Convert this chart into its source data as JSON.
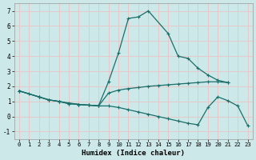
{
  "xlabel": "Humidex (Indice chaleur)",
  "xlim": [
    -0.5,
    23.5
  ],
  "ylim": [
    -1.5,
    7.5
  ],
  "xticks": [
    0,
    1,
    2,
    3,
    4,
    5,
    6,
    7,
    8,
    9,
    10,
    11,
    12,
    13,
    14,
    15,
    16,
    17,
    18,
    19,
    20,
    21,
    22,
    23
  ],
  "yticks": [
    -1,
    0,
    1,
    2,
    3,
    4,
    5,
    6,
    7
  ],
  "background_color": "#cce8e8",
  "grid_color": "#e8c8c8",
  "line_color": "#1a6e6a",
  "curve1_x": [
    0,
    1,
    2,
    3,
    4,
    5,
    6,
    7,
    8,
    9,
    10,
    11,
    12,
    13,
    15,
    16,
    17,
    18,
    19,
    20,
    21
  ],
  "curve1_y": [
    1.7,
    1.5,
    1.3,
    1.1,
    1.0,
    0.9,
    0.8,
    0.75,
    0.72,
    2.3,
    4.2,
    6.5,
    6.6,
    7.0,
    5.5,
    4.0,
    3.85,
    3.2,
    2.75,
    2.4,
    2.25
  ],
  "curve2_x": [
    0,
    2,
    3,
    4,
    5,
    6,
    7,
    8,
    9,
    10,
    11,
    12,
    13,
    14,
    15,
    16,
    17,
    18,
    19,
    20,
    21
  ],
  "curve2_y": [
    1.7,
    1.3,
    1.1,
    1.0,
    0.85,
    0.8,
    0.75,
    0.7,
    1.55,
    1.75,
    1.85,
    1.92,
    2.0,
    2.05,
    2.1,
    2.15,
    2.2,
    2.25,
    2.3,
    2.3,
    2.25
  ],
  "curve3_x": [
    0,
    2,
    3,
    4,
    5,
    6,
    7,
    8,
    9,
    10,
    11,
    12,
    13,
    14,
    15,
    16,
    17,
    18,
    19,
    20,
    21,
    22,
    23
  ],
  "curve3_y": [
    1.7,
    1.3,
    1.1,
    1.0,
    0.85,
    0.8,
    0.75,
    0.7,
    0.7,
    0.6,
    0.45,
    0.3,
    0.15,
    0.0,
    -0.15,
    -0.3,
    -0.45,
    -0.55,
    0.6,
    1.3,
    1.05,
    0.7,
    -0.6
  ]
}
